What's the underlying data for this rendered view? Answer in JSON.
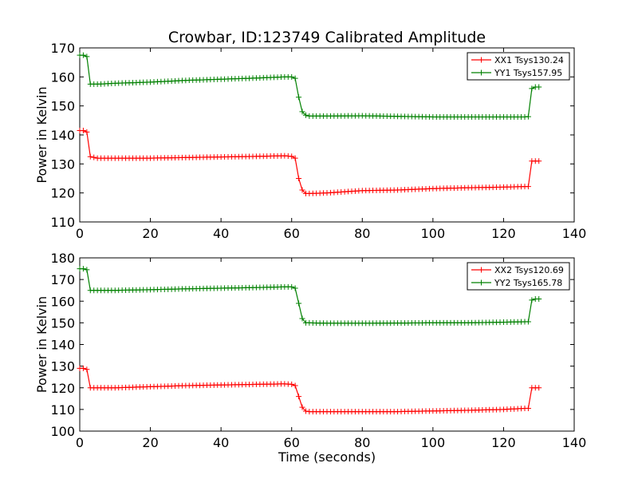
{
  "title": "Crowbar, ID:123749 Calibrated Amplitude",
  "chart_data": [
    {
      "type": "line",
      "title": "Crowbar, ID:123749 Calibrated Amplitude",
      "xlabel": "",
      "ylabel": "Power in Kelvin",
      "xlim": [
        0,
        140
      ],
      "ylim": [
        110,
        170
      ],
      "xticks": [
        "0",
        "20",
        "40",
        "60",
        "80",
        "100",
        "120",
        "140"
      ],
      "yticks": [
        "110",
        "120",
        "130",
        "140",
        "150",
        "160",
        "170"
      ],
      "legend_position": "top-right",
      "grid": false,
      "series": [
        {
          "name": "XX1 Tsys130.24",
          "color": "#ff0000",
          "x": [
            0,
            1,
            2,
            3,
            5,
            10,
            20,
            30,
            40,
            50,
            58,
            60,
            61,
            62,
            63,
            64,
            65,
            70,
            80,
            90,
            100,
            110,
            120,
            126,
            127,
            128,
            129,
            130
          ],
          "values": [
            141.5,
            141.5,
            141,
            132.5,
            132,
            132,
            132,
            132.2,
            132.4,
            132.6,
            132.8,
            132.6,
            132,
            125,
            121,
            119.8,
            119.8,
            120,
            120.8,
            121,
            121.5,
            121.8,
            122,
            122.2,
            122.2,
            131,
            131,
            131
          ]
        },
        {
          "name": "YY1 Tsys157.95",
          "color": "#008000",
          "x": [
            0,
            1,
            2,
            3,
            5,
            10,
            20,
            30,
            40,
            50,
            58,
            60,
            61,
            62,
            63,
            64,
            65,
            70,
            80,
            90,
            100,
            110,
            120,
            126,
            127,
            128,
            129,
            130
          ],
          "values": [
            167.5,
            167.5,
            167,
            157.5,
            157.5,
            157.8,
            158.2,
            158.8,
            159.2,
            159.6,
            160,
            160,
            159.5,
            153,
            148,
            146.8,
            146.5,
            146.5,
            146.6,
            146.4,
            146.2,
            146.2,
            146.2,
            146.2,
            146.3,
            156,
            156.5,
            156.5
          ]
        }
      ]
    },
    {
      "type": "line",
      "title": "",
      "xlabel": "Time (seconds)",
      "ylabel": "Power in Kelvin",
      "xlim": [
        0,
        140
      ],
      "ylim": [
        100,
        180
      ],
      "xticks": [
        "0",
        "20",
        "40",
        "60",
        "80",
        "100",
        "120",
        "140"
      ],
      "yticks": [
        "100",
        "110",
        "120",
        "130",
        "140",
        "150",
        "160",
        "170",
        "180"
      ],
      "legend_position": "top-right",
      "grid": false,
      "series": [
        {
          "name": "XX2 Tsys120.69",
          "color": "#ff0000",
          "x": [
            0,
            1,
            2,
            3,
            5,
            10,
            20,
            30,
            40,
            50,
            58,
            60,
            61,
            62,
            63,
            64,
            65,
            70,
            80,
            90,
            100,
            110,
            120,
            126,
            127,
            128,
            129,
            130
          ],
          "values": [
            129,
            129,
            128.5,
            120,
            120,
            120,
            120.5,
            121,
            121.3,
            121.6,
            121.8,
            121.6,
            121,
            116,
            111,
            109.2,
            109,
            109,
            109,
            109,
            109.3,
            109.6,
            110,
            110.5,
            110.5,
            120,
            120,
            120
          ]
        },
        {
          "name": "YY2 Tsys165.78",
          "color": "#008000",
          "x": [
            0,
            1,
            2,
            3,
            5,
            10,
            20,
            30,
            40,
            50,
            58,
            60,
            61,
            62,
            63,
            64,
            65,
            70,
            80,
            90,
            100,
            110,
            120,
            126,
            127,
            128,
            129,
            130
          ],
          "values": [
            175,
            175,
            174.5,
            165,
            165,
            165,
            165.3,
            165.7,
            166,
            166.3,
            166.6,
            166.6,
            166,
            159,
            152,
            150,
            150,
            149.8,
            149.8,
            149.9,
            150,
            150,
            150.3,
            150.5,
            150.5,
            160.5,
            161,
            161
          ]
        }
      ]
    }
  ]
}
